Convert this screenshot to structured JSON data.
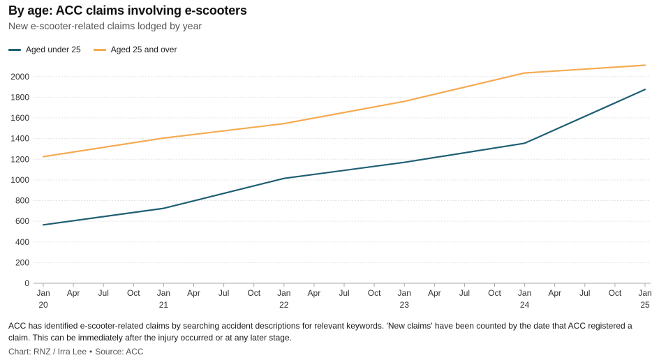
{
  "chart_data": {
    "type": "line",
    "title": "By age: ACC claims involving e-scooters",
    "subtitle": "New e-scooter-related claims lodged by year",
    "xlabel": "",
    "ylabel": "",
    "x": [
      "Jan 2020",
      "Jan 2021",
      "Jan 2022",
      "Jan 2023",
      "Jan 2024",
      "Jan 2025"
    ],
    "ylim": [
      0,
      2100
    ],
    "y_ticks": [
      0,
      200,
      400,
      600,
      800,
      1000,
      1200,
      1400,
      1600,
      1800,
      2000
    ],
    "x_ticks": [
      {
        "m": "Jan",
        "y": "20"
      },
      {
        "m": "Apr",
        "y": ""
      },
      {
        "m": "Jul",
        "y": ""
      },
      {
        "m": "Oct",
        "y": ""
      },
      {
        "m": "Jan",
        "y": "21"
      },
      {
        "m": "Apr",
        "y": ""
      },
      {
        "m": "Jul",
        "y": ""
      },
      {
        "m": "Oct",
        "y": ""
      },
      {
        "m": "Jan",
        "y": "22"
      },
      {
        "m": "Apr",
        "y": ""
      },
      {
        "m": "Jul",
        "y": ""
      },
      {
        "m": "Oct",
        "y": ""
      },
      {
        "m": "Jan",
        "y": "23"
      },
      {
        "m": "Apr",
        "y": ""
      },
      {
        "m": "Jul",
        "y": ""
      },
      {
        "m": "Oct",
        "y": ""
      },
      {
        "m": "Jan",
        "y": "24"
      },
      {
        "m": "Apr",
        "y": ""
      },
      {
        "m": "Jul",
        "y": ""
      },
      {
        "m": "Oct",
        "y": ""
      },
      {
        "m": "Jan",
        "y": "25"
      }
    ],
    "grid": true,
    "legend_position": "top-left",
    "series": [
      {
        "name": "Aged under 25",
        "color": "#1f5f73",
        "values": [
          565,
          725,
          1015,
          1170,
          1355,
          1875
        ]
      },
      {
        "name": "Aged 25 and over",
        "color": "#f5aa50",
        "values": [
          1225,
          1405,
          1545,
          1760,
          2035,
          2110
        ]
      }
    ]
  },
  "footnote": "ACC has identified e-scooter-related claims by searching accident descriptions for relevant keywords. 'New claims' have been counted by the date that ACC registered a claim. This can be immediately after the injury occurred or at any later stage.",
  "credit": {
    "chart": "Chart: RNZ / Irra Lee",
    "source": "Source: ACC"
  },
  "colors": {
    "grid": "#e3e3e3",
    "axis": "#aaaaaa"
  }
}
